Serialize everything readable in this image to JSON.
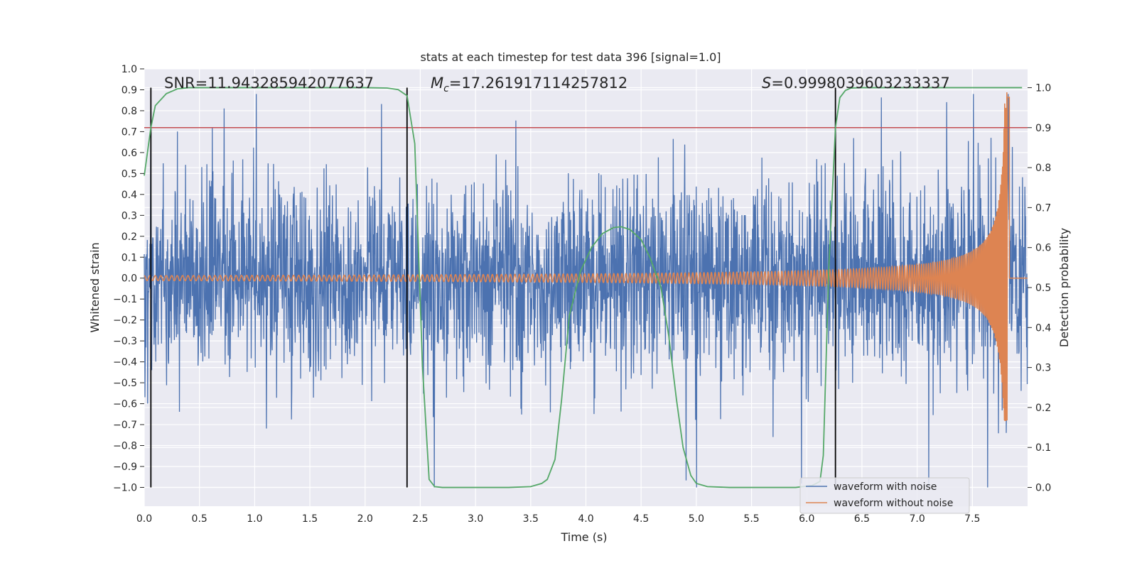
{
  "chart_data": {
    "type": "line",
    "title": "stats at each timestep for test data 396 [signal=1.0]",
    "xlabel": "Time (s)",
    "ylabel": "Whitened strain",
    "y2label": "Detection probability",
    "xlim": [
      0.0,
      8.0
    ],
    "ylim": [
      -1.09,
      1.0
    ],
    "y2lim": [
      -0.047,
      1.047
    ],
    "xticks": [
      "0.0",
      "0.5",
      "1.0",
      "1.5",
      "2.0",
      "2.5",
      "3.0",
      "3.5",
      "4.0",
      "4.5",
      "5.0",
      "5.5",
      "6.0",
      "6.5",
      "7.0",
      "7.5"
    ],
    "yticks": [
      "-1.0",
      "-0.9",
      "-0.8",
      "-0.7",
      "-0.6",
      "-0.5",
      "-0.4",
      "-0.3",
      "-0.2",
      "-0.1",
      "0.0",
      "0.1",
      "0.2",
      "0.3",
      "0.4",
      "0.5",
      "0.6",
      "0.7",
      "0.8",
      "0.9",
      "1.0"
    ],
    "y2ticks": [
      "0.0",
      "0.1",
      "0.2",
      "0.3",
      "0.4",
      "0.5",
      "0.6",
      "0.7",
      "0.8",
      "0.9",
      "1.0"
    ],
    "annotations": {
      "snr": "SNR=11.943285942077637",
      "mc_symbol": "M",
      "mc_sub": "c",
      "mc_value": "=17.261917114257812",
      "s_symbol": "S",
      "s_value": "=0.9998039603233337"
    },
    "threshold": {
      "value": 0.9,
      "color": "#c44e52"
    },
    "event_markers_x": [
      0.06,
      2.38,
      6.26
    ],
    "series": [
      {
        "name": "waveform with noise",
        "color": "#4c72b0",
        "kind": "noise",
        "sample_rate": 2048,
        "duration": 8.0
      },
      {
        "name": "waveform without noise",
        "color": "#dd8452",
        "kind": "chirp",
        "merger_time": 7.82,
        "peak_amplitude": 0.89,
        "min_amplitude": -0.68
      },
      {
        "name": "detection probability",
        "color": "#55a868",
        "x": [
          0.0,
          0.06,
          0.1,
          0.2,
          0.3,
          0.4,
          0.6,
          1.0,
          1.5,
          2.0,
          2.2,
          2.3,
          2.38,
          2.45,
          2.52,
          2.58,
          2.63,
          2.7,
          2.8,
          3.0,
          3.3,
          3.5,
          3.6,
          3.65,
          3.72,
          3.78,
          3.85,
          3.95,
          4.05,
          4.15,
          4.25,
          4.32,
          4.4,
          4.5,
          4.58,
          4.68,
          4.75,
          4.82,
          4.88,
          4.95,
          5.0,
          5.1,
          5.3,
          5.6,
          5.9,
          6.05,
          6.12,
          6.15,
          6.2,
          6.26,
          6.3,
          6.35,
          6.4,
          6.5,
          6.6,
          7.0,
          7.5,
          7.95
        ],
        "values": [
          0.78,
          0.9,
          0.955,
          0.985,
          0.997,
          1.0,
          1.0,
          1.0,
          1.0,
          1.0,
          0.999,
          0.995,
          0.98,
          0.86,
          0.3,
          0.02,
          0.002,
          0.0,
          0.0,
          0.0,
          0.0,
          0.002,
          0.01,
          0.02,
          0.07,
          0.22,
          0.43,
          0.54,
          0.6,
          0.635,
          0.65,
          0.652,
          0.645,
          0.62,
          0.575,
          0.5,
          0.38,
          0.22,
          0.1,
          0.03,
          0.01,
          0.002,
          0.0,
          0.0,
          0.0,
          0.005,
          0.015,
          0.08,
          0.55,
          0.9,
          0.975,
          0.993,
          0.999,
          1.0,
          1.0,
          1.0,
          1.0,
          1.0
        ]
      }
    ],
    "legend": {
      "position": "lower-right",
      "entries": [
        "waveform with noise",
        "waveform without noise"
      ]
    },
    "grid": true
  }
}
